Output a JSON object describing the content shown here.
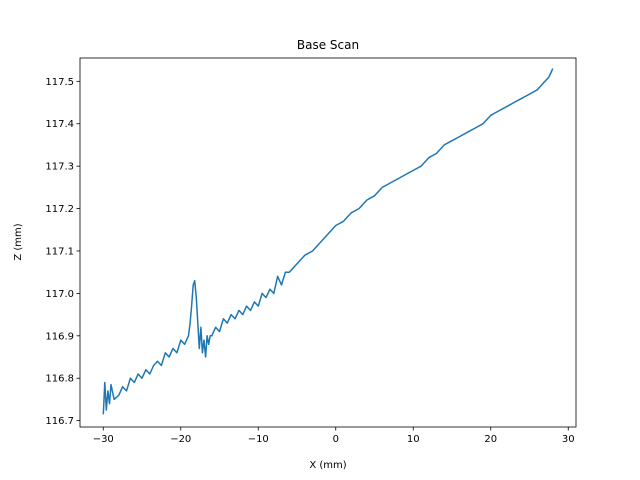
{
  "chart_data": {
    "type": "line",
    "title": "Base Scan",
    "xlabel": "X (mm)",
    "ylabel": "Z (mm)",
    "xlim": [
      -33.0,
      31.0
    ],
    "ylim": [
      116.685,
      117.555
    ],
    "xticks": [
      -30,
      -20,
      -10,
      0,
      10,
      20,
      30
    ],
    "xtick_labels": [
      "−30",
      "−20",
      "−10",
      "0",
      "10",
      "20",
      "30"
    ],
    "yticks": [
      116.7,
      116.8,
      116.9,
      117.0,
      117.1,
      117.2,
      117.3,
      117.4,
      117.5
    ],
    "ytick_labels": [
      "116.7",
      "116.8",
      "116.9",
      "117.0",
      "117.1",
      "117.2",
      "117.3",
      "117.4",
      "117.5"
    ],
    "grid": false,
    "series": [
      {
        "color": "#1f77b4",
        "x": [
          -30.0,
          -29.8,
          -29.6,
          -29.4,
          -29.2,
          -29.0,
          -28.6,
          -28.0,
          -27.5,
          -27.0,
          -26.5,
          -26.0,
          -25.5,
          -25.0,
          -24.5,
          -24.0,
          -23.5,
          -23.0,
          -22.5,
          -22.0,
          -21.5,
          -21.0,
          -20.5,
          -20.0,
          -19.5,
          -19.0,
          -18.8,
          -18.6,
          -18.4,
          -18.2,
          -18.0,
          -17.8,
          -17.6,
          -17.4,
          -17.2,
          -17.0,
          -16.8,
          -16.6,
          -16.4,
          -16.2,
          -16.0,
          -15.5,
          -15.0,
          -14.5,
          -14.0,
          -13.5,
          -13.0,
          -12.5,
          -12.0,
          -11.5,
          -11.0,
          -10.5,
          -10.0,
          -9.5,
          -9.0,
          -8.5,
          -8.0,
          -7.5,
          -7.0,
          -6.5,
          -6.0,
          -5.0,
          -4.0,
          -3.0,
          -2.0,
          -1.0,
          0.0,
          1.0,
          2.0,
          3.0,
          4.0,
          5.0,
          6.0,
          7.0,
          8.0,
          9.0,
          10.0,
          11.0,
          12.0,
          13.0,
          14.0,
          15.0,
          16.0,
          17.0,
          18.0,
          19.0,
          20.0,
          21.0,
          22.0,
          23.0,
          24.0,
          25.0,
          26.0,
          26.5,
          27.0,
          27.5,
          28.0
        ],
        "y": [
          116.715,
          116.79,
          116.725,
          116.77,
          116.74,
          116.785,
          116.75,
          116.76,
          116.78,
          116.77,
          116.8,
          116.79,
          116.81,
          116.8,
          116.82,
          116.81,
          116.83,
          116.84,
          116.83,
          116.86,
          116.85,
          116.87,
          116.86,
          116.89,
          116.88,
          116.9,
          116.93,
          116.97,
          117.02,
          117.03,
          116.99,
          116.93,
          116.87,
          116.92,
          116.86,
          116.89,
          116.85,
          116.9,
          116.88,
          116.9,
          116.9,
          116.92,
          116.91,
          116.94,
          116.93,
          116.95,
          116.94,
          116.96,
          116.95,
          116.97,
          116.96,
          116.98,
          116.97,
          117.0,
          116.99,
          117.01,
          117.0,
          117.04,
          117.02,
          117.05,
          117.05,
          117.07,
          117.09,
          117.1,
          117.12,
          117.14,
          117.16,
          117.17,
          117.19,
          117.2,
          117.22,
          117.23,
          117.25,
          117.26,
          117.27,
          117.28,
          117.29,
          117.3,
          117.32,
          117.33,
          117.35,
          117.36,
          117.37,
          117.38,
          117.39,
          117.4,
          117.42,
          117.43,
          117.44,
          117.45,
          117.46,
          117.47,
          117.48,
          117.49,
          117.5,
          117.51,
          117.53
        ]
      }
    ]
  }
}
